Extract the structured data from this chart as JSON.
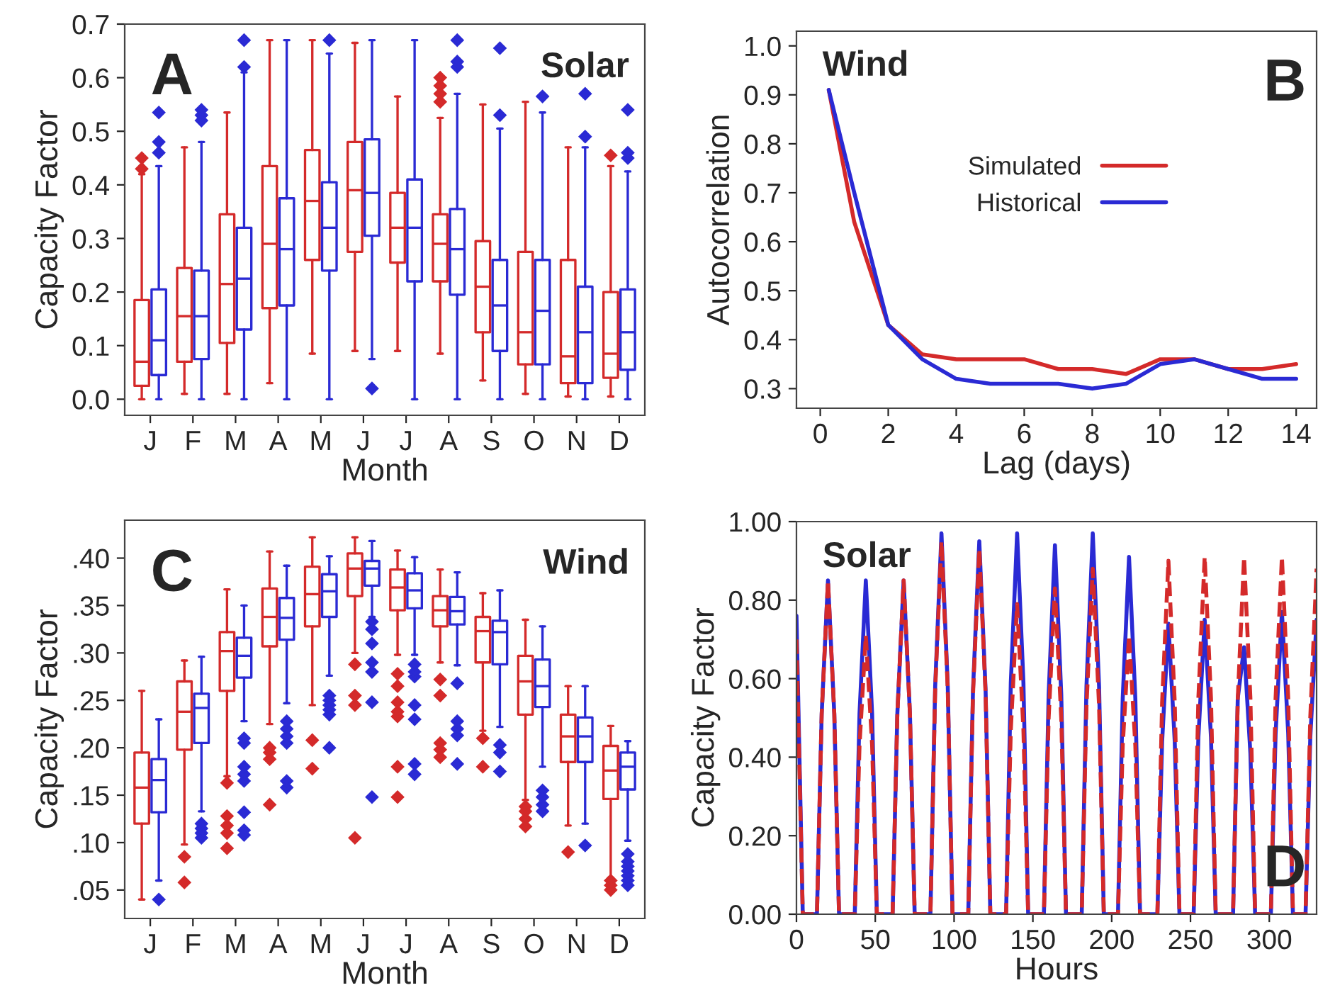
{
  "chart_data": [
    {
      "type": "box",
      "xlabel": "Month",
      "ylabel": "Capacity Factor",
      "annotations": [
        "A",
        "Solar"
      ],
      "categories": [
        "J",
        "F",
        "M",
        "A",
        "M",
        "J",
        "J",
        "A",
        "S",
        "O",
        "N",
        "D"
      ],
      "ylim": [
        -0.03,
        0.7
      ],
      "yticks": [
        {
          "value": 0,
          "label": "0.0"
        },
        {
          "value": 0.1,
          "label": "0.1"
        },
        {
          "value": 0.2,
          "label": "0.2"
        },
        {
          "value": 0.3,
          "label": "0.3"
        },
        {
          "value": 0.4,
          "label": "0.4"
        },
        {
          "value": 0.5,
          "label": "0.5"
        },
        {
          "value": 0.6,
          "label": "0.6"
        },
        {
          "value": 0.7,
          "label": "0.7"
        }
      ],
      "grid": false,
      "legend": false,
      "series": [
        {
          "color": "#d42a2a",
          "boxes": [
            {
              "low": 0.0,
              "q1": 0.025,
              "median": 0.07,
              "q3": 0.185,
              "high": 0.42,
              "outliers": [
                0.43,
                0.45
              ]
            },
            {
              "low": 0.01,
              "q1": 0.07,
              "median": 0.155,
              "q3": 0.245,
              "high": 0.47
            },
            {
              "low": 0.01,
              "q1": 0.105,
              "median": 0.215,
              "q3": 0.345,
              "high": 0.535
            },
            {
              "low": 0.03,
              "q1": 0.17,
              "median": 0.29,
              "q3": 0.435,
              "high": 0.67
            },
            {
              "low": 0.085,
              "q1": 0.26,
              "median": 0.37,
              "q3": 0.465,
              "high": 0.67
            },
            {
              "low": 0.09,
              "q1": 0.275,
              "median": 0.39,
              "q3": 0.48,
              "high": 0.665
            },
            {
              "low": 0.09,
              "q1": 0.255,
              "median": 0.32,
              "q3": 0.385,
              "high": 0.565
            },
            {
              "low": 0.085,
              "q1": 0.22,
              "median": 0.29,
              "q3": 0.345,
              "high": 0.525,
              "outliers": [
                0.555,
                0.57,
                0.585,
                0.6
              ]
            },
            {
              "low": 0.035,
              "q1": 0.125,
              "median": 0.21,
              "q3": 0.295,
              "high": 0.55
            },
            {
              "low": 0.01,
              "q1": 0.065,
              "median": 0.125,
              "q3": 0.275,
              "high": 0.555
            },
            {
              "low": 0.005,
              "q1": 0.03,
              "median": 0.08,
              "q3": 0.26,
              "high": 0.47
            },
            {
              "low": 0.005,
              "q1": 0.04,
              "median": 0.085,
              "q3": 0.2,
              "high": 0.435,
              "outliers": [
                0.455
              ]
            }
          ]
        },
        {
          "color": "#2a2ad4",
          "boxes": [
            {
              "low": 0.0,
              "q1": 0.045,
              "median": 0.11,
              "q3": 0.205,
              "high": 0.435,
              "outliers": [
                0.46,
                0.48,
                0.535
              ]
            },
            {
              "low": 0.0,
              "q1": 0.075,
              "median": 0.155,
              "q3": 0.24,
              "high": 0.48,
              "outliers": [
                0.52,
                0.53,
                0.54
              ]
            },
            {
              "low": 0.0,
              "q1": 0.13,
              "median": 0.225,
              "q3": 0.32,
              "high": 0.61,
              "outliers": [
                0.62,
                0.67
              ]
            },
            {
              "low": 0.0,
              "q1": 0.175,
              "median": 0.28,
              "q3": 0.375,
              "high": 0.67
            },
            {
              "low": 0.0,
              "q1": 0.24,
              "median": 0.32,
              "q3": 0.405,
              "high": 0.645,
              "outliers": [
                0.67
              ]
            },
            {
              "low": 0.075,
              "q1": 0.305,
              "median": 0.385,
              "q3": 0.485,
              "high": 0.67,
              "outliers": [
                0.02
              ]
            },
            {
              "low": 0.0,
              "q1": 0.22,
              "median": 0.32,
              "q3": 0.41,
              "high": 0.67
            },
            {
              "low": 0.0,
              "q1": 0.195,
              "median": 0.28,
              "q3": 0.355,
              "high": 0.57,
              "outliers": [
                0.62,
                0.63,
                0.67
              ]
            },
            {
              "low": 0.0,
              "q1": 0.09,
              "median": 0.175,
              "q3": 0.26,
              "high": 0.505,
              "outliers": [
                0.53,
                0.655
              ]
            },
            {
              "low": 0.0,
              "q1": 0.065,
              "median": 0.165,
              "q3": 0.26,
              "high": 0.535,
              "outliers": [
                0.565
              ]
            },
            {
              "low": 0.0,
              "q1": 0.03,
              "median": 0.125,
              "q3": 0.21,
              "high": 0.47,
              "outliers": [
                0.49,
                0.57
              ]
            },
            {
              "low": 0.0,
              "q1": 0.055,
              "median": 0.125,
              "q3": 0.205,
              "high": 0.425,
              "outliers": [
                0.45,
                0.46,
                0.54
              ]
            }
          ]
        }
      ]
    },
    {
      "type": "line",
      "xlabel": "Lag (days)",
      "ylabel": "Autocorrelation",
      "annotations": [
        "Wind",
        "B"
      ],
      "xlim": [
        -0.7,
        14.6
      ],
      "xticks": [
        0,
        2,
        4,
        6,
        8,
        10,
        12,
        14
      ],
      "ylim": [
        0.26,
        1.03
      ],
      "yticks": [
        {
          "value": 0.3,
          "label": "0.3"
        },
        {
          "value": 0.4,
          "label": "0.4"
        },
        {
          "value": 0.5,
          "label": "0.5"
        },
        {
          "value": 0.6,
          "label": "0.6"
        },
        {
          "value": 0.7,
          "label": "0.7"
        },
        {
          "value": 0.8,
          "label": "0.8"
        },
        {
          "value": 0.9,
          "label": "0.9"
        },
        {
          "value": 1,
          "label": "1.0"
        }
      ],
      "grid": false,
      "legend": "top",
      "x": [
        0.25,
        1,
        2,
        3,
        4,
        5,
        6,
        7,
        8,
        9,
        10,
        11,
        12,
        13,
        14
      ],
      "series": [
        {
          "name": "Simulated",
          "color": "#d42a2a",
          "values": [
            0.91,
            0.64,
            0.43,
            0.37,
            0.36,
            0.36,
            0.36,
            0.34,
            0.34,
            0.33,
            0.36,
            0.36,
            0.34,
            0.34,
            0.35
          ]
        },
        {
          "name": "Historical",
          "color": "#2a2ad4",
          "values": [
            0.91,
            0.7,
            0.43,
            0.36,
            0.32,
            0.31,
            0.31,
            0.31,
            0.3,
            0.31,
            0.35,
            0.36,
            0.34,
            0.32,
            0.32
          ]
        }
      ]
    },
    {
      "type": "box",
      "xlabel": "Month",
      "ylabel": "Capacity Factor",
      "annotations": [
        "C",
        "Wind"
      ],
      "categories": [
        "J",
        "F",
        "M",
        "A",
        "M",
        "J",
        "J",
        "A",
        "S",
        "O",
        "N",
        "D"
      ],
      "ylim": [
        0.02,
        0.44
      ],
      "yticks": [
        {
          "value": 0.05,
          "label": ".05"
        },
        {
          "value": 0.1,
          "label": ".10"
        },
        {
          "value": 0.15,
          "label": ".15"
        },
        {
          "value": 0.2,
          "label": ".20"
        },
        {
          "value": 0.25,
          "label": ".25"
        },
        {
          "value": 0.3,
          "label": ".30"
        },
        {
          "value": 0.35,
          "label": ".35"
        },
        {
          "value": 0.4,
          "label": ".40"
        }
      ],
      "grid": false,
      "legend": false,
      "series": [
        {
          "color": "#d42a2a",
          "boxes": [
            {
              "low": 0.04,
              "q1": 0.12,
              "median": 0.158,
              "q3": 0.195,
              "high": 0.26
            },
            {
              "low": 0.098,
              "q1": 0.198,
              "median": 0.238,
              "q3": 0.27,
              "high": 0.292,
              "outliers": [
                0.058,
                0.085
              ]
            },
            {
              "low": 0.17,
              "q1": 0.26,
              "median": 0.302,
              "q3": 0.322,
              "high": 0.367,
              "outliers": [
                0.094,
                0.11,
                0.118,
                0.128,
                0.163
              ]
            },
            {
              "low": 0.225,
              "q1": 0.307,
              "median": 0.338,
              "q3": 0.368,
              "high": 0.407,
              "outliers": [
                0.14,
                0.188,
                0.195,
                0.2
              ]
            },
            {
              "low": 0.245,
              "q1": 0.328,
              "median": 0.362,
              "q3": 0.391,
              "high": 0.422,
              "outliers": [
                0.178,
                0.208
              ]
            },
            {
              "low": 0.3,
              "q1": 0.36,
              "median": 0.389,
              "q3": 0.405,
              "high": 0.422,
              "outliers": [
                0.105,
                0.245,
                0.255,
                0.288
              ]
            },
            {
              "low": 0.298,
              "q1": 0.345,
              "median": 0.369,
              "q3": 0.388,
              "high": 0.408,
              "outliers": [
                0.148,
                0.18,
                0.233,
                0.238,
                0.248,
                0.265,
                0.278
              ]
            },
            {
              "low": 0.29,
              "q1": 0.328,
              "median": 0.345,
              "q3": 0.36,
              "high": 0.388,
              "outliers": [
                0.19,
                0.198,
                0.205,
                0.255,
                0.272
              ]
            },
            {
              "low": 0.218,
              "q1": 0.29,
              "median": 0.323,
              "q3": 0.338,
              "high": 0.363,
              "outliers": [
                0.18,
                0.21
              ]
            },
            {
              "low": 0.145,
              "q1": 0.235,
              "median": 0.27,
              "q3": 0.297,
              "high": 0.335,
              "outliers": [
                0.117,
                0.125,
                0.133,
                0.138
              ]
            },
            {
              "low": 0.118,
              "q1": 0.185,
              "median": 0.212,
              "q3": 0.235,
              "high": 0.265,
              "outliers": [
                0.09
              ]
            },
            {
              "low": 0.063,
              "q1": 0.146,
              "median": 0.176,
              "q3": 0.202,
              "high": 0.223,
              "outliers": [
                0.05,
                0.055,
                0.06
              ]
            }
          ]
        },
        {
          "color": "#2a2ad4",
          "boxes": [
            {
              "low": 0.06,
              "q1": 0.132,
              "median": 0.166,
              "q3": 0.188,
              "high": 0.23,
              "outliers": [
                0.04
              ]
            },
            {
              "low": 0.133,
              "q1": 0.205,
              "median": 0.242,
              "q3": 0.257,
              "high": 0.296,
              "outliers": [
                0.105,
                0.11,
                0.115,
                0.12
              ]
            },
            {
              "low": 0.228,
              "q1": 0.274,
              "median": 0.297,
              "q3": 0.316,
              "high": 0.35,
              "outliers": [
                0.108,
                0.113,
                0.132,
                0.165,
                0.172,
                0.18,
                0.205,
                0.21
              ]
            },
            {
              "low": 0.247,
              "q1": 0.314,
              "median": 0.337,
              "q3": 0.358,
              "high": 0.392,
              "outliers": [
                0.158,
                0.165,
                0.205,
                0.212,
                0.22,
                0.228
              ]
            },
            {
              "low": 0.276,
              "q1": 0.338,
              "median": 0.365,
              "q3": 0.383,
              "high": 0.402,
              "outliers": [
                0.2,
                0.235,
                0.24,
                0.245,
                0.25,
                0.255
              ]
            },
            {
              "low": 0.338,
              "q1": 0.371,
              "median": 0.389,
              "q3": 0.397,
              "high": 0.418,
              "outliers": [
                0.148,
                0.248,
                0.28,
                0.29,
                0.31,
                0.325,
                0.333
              ]
            },
            {
              "low": 0.298,
              "q1": 0.347,
              "median": 0.366,
              "q3": 0.384,
              "high": 0.401,
              "outliers": [
                0.172,
                0.183,
                0.23,
                0.245,
                0.275,
                0.28,
                0.288
              ]
            },
            {
              "low": 0.287,
              "q1": 0.33,
              "median": 0.344,
              "q3": 0.359,
              "high": 0.385,
              "outliers": [
                0.183,
                0.213,
                0.22,
                0.228,
                0.268
              ]
            },
            {
              "low": 0.222,
              "q1": 0.288,
              "median": 0.322,
              "q3": 0.334,
              "high": 0.366,
              "outliers": [
                0.175,
                0.195,
                0.203
              ]
            },
            {
              "low": 0.18,
              "q1": 0.243,
              "median": 0.265,
              "q3": 0.293,
              "high": 0.328,
              "outliers": [
                0.133,
                0.14,
                0.148,
                0.155
              ]
            },
            {
              "low": 0.12,
              "q1": 0.185,
              "median": 0.212,
              "q3": 0.232,
              "high": 0.265,
              "outliers": [
                0.097
              ]
            },
            {
              "low": 0.102,
              "q1": 0.156,
              "median": 0.18,
              "q3": 0.195,
              "high": 0.207,
              "outliers": [
                0.055,
                0.06,
                0.065,
                0.07,
                0.075,
                0.08,
                0.088
              ]
            }
          ]
        }
      ]
    },
    {
      "type": "line",
      "xlabel": "Hours",
      "ylabel": "Capacity Factor",
      "annotations": [
        "Solar",
        "D"
      ],
      "xlim": [
        0,
        330
      ],
      "xticks": [
        0,
        50,
        100,
        150,
        200,
        250,
        300
      ],
      "ylim": [
        0,
        1
      ],
      "yticks": [
        {
          "value": 0,
          "label": "0.00"
        },
        {
          "value": 0.2,
          "label": "0.20"
        },
        {
          "value": 0.4,
          "label": "0.40"
        },
        {
          "value": 0.6,
          "label": "0.60"
        },
        {
          "value": 0.8,
          "label": "0.80"
        },
        {
          "value": 1,
          "label": "1.00"
        }
      ],
      "grid": false,
      "legend": false,
      "x": [
        0,
        4,
        13,
        16,
        20,
        24,
        27,
        37,
        40,
        44,
        48,
        51,
        61,
        64,
        68,
        72,
        75,
        85,
        88,
        92,
        96,
        99,
        109,
        112,
        116,
        120,
        123,
        133,
        136,
        140,
        144,
        147,
        157,
        160,
        164,
        168,
        171,
        181,
        184,
        188,
        192,
        195,
        204,
        207,
        211,
        215,
        218,
        229,
        232,
        236,
        240,
        243,
        252,
        255,
        259,
        263,
        266,
        277,
        280,
        284,
        288,
        291,
        301,
        304,
        308,
        312,
        315,
        323,
        326,
        330
      ],
      "series": [
        {
          "color": "#2a2ad4",
          "line_style": "solid",
          "values": [
            0.76,
            0,
            0,
            0.51,
            0.85,
            0.51,
            0,
            0,
            0.51,
            0.85,
            0.51,
            0,
            0,
            0.51,
            0.85,
            0.51,
            0,
            0,
            0.58,
            0.97,
            0.58,
            0,
            0,
            0.57,
            0.95,
            0.57,
            0,
            0,
            0.59,
            0.97,
            0.59,
            0,
            0,
            0.56,
            0.94,
            0.56,
            0,
            0,
            0.58,
            0.97,
            0.58,
            0,
            0,
            0.55,
            0.91,
            0.55,
            0,
            0,
            0.44,
            0.74,
            0.44,
            0,
            0,
            0.45,
            0.75,
            0.45,
            0,
            0,
            0.55,
            0.68,
            0.41,
            0,
            0,
            0.46,
            0.77,
            0.46,
            0,
            0,
            0.45,
            0.75
          ]
        },
        {
          "color": "#d42a2a",
          "line_style": "dashed",
          "values": [
            0.7,
            0,
            0,
            0.51,
            0.85,
            0.51,
            0,
            0,
            0.43,
            0.71,
            0.43,
            0,
            0,
            0.51,
            0.85,
            0.51,
            0,
            0,
            0.57,
            0.95,
            0.57,
            0,
            0,
            0.56,
            0.93,
            0.56,
            0,
            0,
            0.47,
            0.79,
            0.47,
            0,
            0,
            0.5,
            0.83,
            0.5,
            0,
            0,
            0.53,
            0.88,
            0.53,
            0,
            0,
            0.43,
            0.71,
            0.43,
            0,
            0,
            0.54,
            0.9,
            0.54,
            0,
            0,
            0.55,
            0.91,
            0.55,
            0,
            0,
            0.55,
            0.91,
            0.55,
            0,
            0,
            0.55,
            0.91,
            0.55,
            0,
            0,
            0.5,
            0.88
          ]
        }
      ]
    }
  ]
}
